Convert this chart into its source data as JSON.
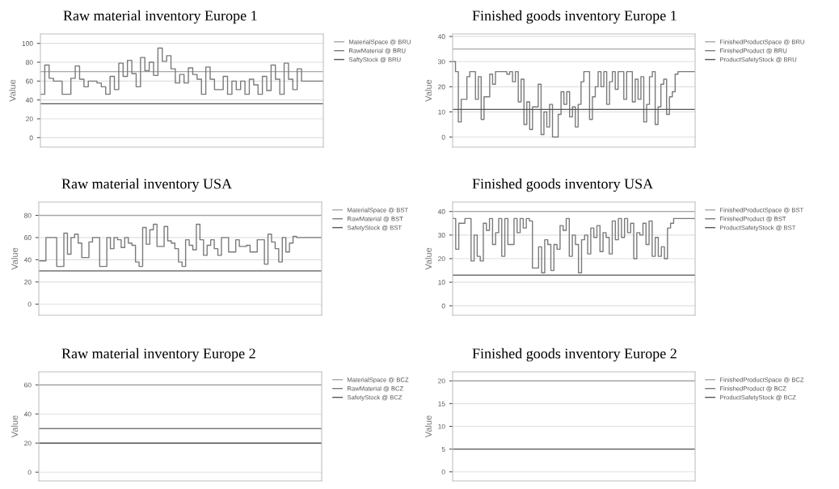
{
  "chart_data": [
    {
      "type": "step",
      "title": "Raw material inventory Europe 1",
      "ylabel": "Value",
      "ylim": [
        -10,
        110
      ],
      "yticks": [
        0,
        20,
        40,
        60,
        80,
        100
      ],
      "grid": "y",
      "legend": "right",
      "tick_labels": "y",
      "marker": "none",
      "line_style": "solid",
      "categories": [
        null,
        null,
        null,
        null,
        null,
        null,
        null,
        null,
        null,
        null,
        null,
        null,
        null,
        null,
        null,
        null,
        null,
        null,
        null,
        null,
        null,
        null,
        null,
        null,
        null,
        null,
        null,
        null,
        null,
        null,
        null,
        null,
        null,
        null,
        null,
        null,
        null,
        null,
        null,
        null,
        null,
        null,
        null,
        null,
        null,
        null,
        null,
        null,
        null,
        null,
        null,
        null,
        null,
        null,
        null,
        null,
        null,
        null,
        null,
        null,
        null,
        null,
        null,
        null,
        null,
        null
      ],
      "series": [
        {
          "name": "MaterialSpace @ BRU",
          "color": "#a8a8a8",
          "values": [
            70,
            70,
            70,
            70,
            70,
            70,
            70,
            70,
            70,
            70,
            70,
            70,
            70,
            70,
            70,
            70,
            70,
            70,
            70,
            70,
            70,
            70,
            70,
            70,
            70,
            70,
            70,
            70,
            70,
            70,
            70,
            70,
            70,
            70,
            70,
            70,
            70,
            70,
            70,
            70,
            70,
            70,
            70,
            70,
            70,
            70,
            70,
            70,
            70,
            70,
            70,
            70,
            70,
            70,
            70,
            70,
            70,
            70,
            70,
            70,
            70,
            70,
            70,
            70,
            70,
            70
          ]
        },
        {
          "name": "RawMaterial @ BRU",
          "color": "#7a7a7a",
          "values": [
            46,
            77,
            63,
            60,
            60,
            46,
            46,
            63,
            76,
            62,
            54,
            60,
            60,
            58,
            54,
            46,
            65,
            51,
            79,
            65,
            82,
            68,
            54,
            85,
            71,
            80,
            66,
            95,
            81,
            87,
            73,
            58,
            67,
            58,
            74,
            67,
            62,
            46,
            75,
            62,
            51,
            51,
            65,
            46,
            60,
            51,
            60,
            46,
            62,
            56,
            46,
            65,
            50,
            77,
            62,
            46,
            79,
            62,
            51,
            73,
            60,
            60,
            60,
            60,
            60,
            60
          ]
        },
        {
          "name": "SaftyStock @ BRU",
          "color": "#555555",
          "values": [
            36,
            36,
            36,
            36,
            36,
            36,
            36,
            36,
            36,
            36,
            36,
            36,
            36,
            36,
            36,
            36,
            36,
            36,
            36,
            36,
            36,
            36,
            36,
            36,
            36,
            36,
            36,
            36,
            36,
            36,
            36,
            36,
            36,
            36,
            36,
            36,
            36,
            36,
            36,
            36,
            36,
            36,
            36,
            36,
            36,
            36,
            36,
            36,
            36,
            36,
            36,
            36,
            36,
            36,
            36,
            36,
            36,
            36,
            36,
            36,
            36,
            36,
            36,
            36,
            36,
            36
          ]
        }
      ]
    },
    {
      "type": "step",
      "title": "Finished goods inventory Europe 1",
      "ylabel": "Value",
      "ylim": [
        -4,
        41
      ],
      "yticks": [
        0,
        10,
        20,
        30,
        40
      ],
      "grid": "y",
      "legend": "right",
      "tick_labels": "y",
      "marker": "none",
      "line_style": "solid",
      "categories": [
        null,
        null,
        null,
        null,
        null,
        null,
        null,
        null,
        null,
        null,
        null,
        null,
        null,
        null,
        null,
        null,
        null,
        null,
        null,
        null,
        null,
        null,
        null,
        null,
        null,
        null,
        null,
        null,
        null,
        null,
        null,
        null,
        null,
        null,
        null,
        null,
        null,
        null,
        null,
        null,
        null,
        null,
        null,
        null,
        null,
        null,
        null,
        null,
        null,
        null,
        null,
        null,
        null,
        null,
        null,
        null,
        null,
        null,
        null,
        null,
        null,
        null,
        null,
        null,
        null,
        null,
        null,
        null,
        null,
        null,
        null,
        null,
        null,
        null,
        null,
        null,
        null,
        null,
        null,
        null,
        null,
        null,
        null,
        null,
        null,
        null
      ],
      "series": [
        {
          "name": "FinishedProductSpace @ BRU",
          "color": "#a8a8a8",
          "values": [
            35,
            35,
            35,
            35,
            35,
            35,
            35,
            35,
            35,
            35,
            35,
            35,
            35,
            35,
            35,
            35,
            35,
            35,
            35,
            35,
            35,
            35,
            35,
            35,
            35,
            35,
            35,
            35,
            35,
            35,
            35,
            35,
            35,
            35,
            35,
            35,
            35,
            35,
            35,
            35,
            35,
            35,
            35,
            35,
            35,
            35,
            35,
            35,
            35,
            35,
            35,
            35,
            35,
            35,
            35,
            35,
            35,
            35,
            35,
            35,
            35,
            35,
            35,
            35,
            35,
            35,
            35,
            35,
            35,
            35,
            35,
            35,
            35,
            35,
            35,
            35,
            35,
            35,
            35,
            35,
            35,
            35,
            35,
            35,
            35,
            35
          ]
        },
        {
          "name": "FinishedProduct @ BRU",
          "color": "#7a7a7a",
          "values": [
            30,
            26,
            6,
            15,
            15,
            24,
            26,
            26,
            15,
            24,
            7,
            16,
            16,
            25,
            21,
            26,
            26,
            26,
            26,
            25,
            26,
            22,
            26,
            14,
            23,
            5,
            14,
            3,
            12,
            12,
            21,
            1,
            10,
            4,
            13,
            0,
            0,
            9,
            18,
            13,
            18,
            8,
            12,
            4,
            13,
            22,
            26,
            26,
            7,
            16,
            20,
            26,
            20,
            26,
            13,
            22,
            26,
            19,
            26,
            26,
            15,
            26,
            26,
            14,
            23,
            15,
            24,
            6,
            13,
            24,
            26,
            5,
            12,
            21,
            23,
            9,
            16,
            18,
            25,
            26,
            26,
            26,
            26,
            26,
            26,
            26
          ]
        },
        {
          "name": "ProductSafetyStock @ BRU",
          "color": "#555555",
          "values": [
            11,
            11,
            11,
            11,
            11,
            11,
            11,
            11,
            11,
            11,
            11,
            11,
            11,
            11,
            11,
            11,
            11,
            11,
            11,
            11,
            11,
            11,
            11,
            11,
            11,
            11,
            11,
            11,
            11,
            11,
            11,
            11,
            11,
            11,
            11,
            11,
            11,
            11,
            11,
            11,
            11,
            11,
            11,
            11,
            11,
            11,
            11,
            11,
            11,
            11,
            11,
            11,
            11,
            11,
            11,
            11,
            11,
            11,
            11,
            11,
            11,
            11,
            11,
            11,
            11,
            11,
            11,
            11,
            11,
            11,
            11,
            11,
            11,
            11,
            11,
            11,
            11,
            11,
            11,
            11,
            11,
            11,
            11,
            11,
            11,
            11
          ]
        }
      ]
    },
    {
      "type": "step",
      "title": "Raw material inventory USA",
      "ylabel": "Value",
      "ylim": [
        -10,
        92
      ],
      "yticks": [
        0,
        20,
        40,
        60,
        80
      ],
      "grid": "y",
      "legend": "right",
      "tick_labels": "y",
      "marker": "none",
      "line_style": "solid",
      "categories": [
        null,
        null,
        null,
        null,
        null,
        null,
        null,
        null,
        null,
        null,
        null,
        null,
        null,
        null,
        null,
        null,
        null,
        null,
        null,
        null,
        null,
        null,
        null,
        null,
        null,
        null,
        null,
        null,
        null,
        null,
        null,
        null,
        null,
        null,
        null,
        null,
        null,
        null,
        null,
        null,
        null,
        null,
        null,
        null,
        null,
        null,
        null,
        null,
        null,
        null,
        null,
        null,
        null,
        null,
        null,
        null,
        null,
        null,
        null,
        null,
        null,
        null,
        null,
        null,
        null,
        null,
        null,
        null,
        null,
        null,
        null,
        null,
        null,
        null,
        null,
        null,
        null,
        null,
        null,
        null
      ],
      "series": [
        {
          "name": "MaterialSpace @ BST",
          "color": "#a8a8a8",
          "values": [
            80,
            80,
            80,
            80,
            80,
            80,
            80,
            80,
            80,
            80,
            80,
            80,
            80,
            80,
            80,
            80,
            80,
            80,
            80,
            80,
            80,
            80,
            80,
            80,
            80,
            80,
            80,
            80,
            80,
            80,
            80,
            80,
            80,
            80,
            80,
            80,
            80,
            80,
            80,
            80,
            80,
            80,
            80,
            80,
            80,
            80,
            80,
            80,
            80,
            80,
            80,
            80,
            80,
            80,
            80,
            80,
            80,
            80,
            80,
            80,
            80,
            80,
            80,
            80,
            80,
            80,
            80,
            80,
            80,
            80,
            80,
            80,
            80,
            80,
            80,
            80,
            80,
            80,
            80,
            80
          ]
        },
        {
          "name": "RawMaterial @ BST",
          "color": "#7a7a7a",
          "values": [
            39,
            39,
            60,
            60,
            60,
            34,
            34,
            64,
            45,
            60,
            63,
            55,
            42,
            42,
            56,
            60,
            60,
            34,
            34,
            60,
            50,
            60,
            58,
            51,
            60,
            55,
            53,
            38,
            34,
            69,
            54,
            67,
            72,
            52,
            52,
            70,
            57,
            55,
            50,
            38,
            34,
            58,
            53,
            49,
            72,
            58,
            44,
            53,
            58,
            50,
            44,
            60,
            60,
            47,
            47,
            58,
            52,
            52,
            53,
            47,
            47,
            58,
            58,
            36,
            63,
            56,
            50,
            38,
            60,
            47,
            55,
            61,
            60,
            60,
            60,
            60,
            60,
            60,
            60,
            60
          ]
        },
        {
          "name": "SafetyStock @ BST",
          "color": "#555555",
          "values": [
            30,
            30,
            30,
            30,
            30,
            30,
            30,
            30,
            30,
            30,
            30,
            30,
            30,
            30,
            30,
            30,
            30,
            30,
            30,
            30,
            30,
            30,
            30,
            30,
            30,
            30,
            30,
            30,
            30,
            30,
            30,
            30,
            30,
            30,
            30,
            30,
            30,
            30,
            30,
            30,
            30,
            30,
            30,
            30,
            30,
            30,
            30,
            30,
            30,
            30,
            30,
            30,
            30,
            30,
            30,
            30,
            30,
            30,
            30,
            30,
            30,
            30,
            30,
            30,
            30,
            30,
            30,
            30,
            30,
            30,
            30,
            30,
            30,
            30,
            30,
            30,
            30,
            30,
            30,
            30
          ]
        }
      ]
    },
    {
      "type": "step",
      "title": "Finished goods inventory USA",
      "ylabel": "Value",
      "ylim": [
        -4,
        44
      ],
      "yticks": [
        0,
        10,
        20,
        30,
        40
      ],
      "grid": "y",
      "legend": "right",
      "tick_labels": "y",
      "marker": "none",
      "line_style": "solid",
      "categories": [
        null,
        null,
        null,
        null,
        null,
        null,
        null,
        null,
        null,
        null,
        null,
        null,
        null,
        null,
        null,
        null,
        null,
        null,
        null,
        null,
        null,
        null,
        null,
        null,
        null,
        null,
        null,
        null,
        null,
        null,
        null,
        null,
        null,
        null,
        null,
        null,
        null,
        null,
        null,
        null,
        null,
        null,
        null,
        null,
        null,
        null,
        null,
        null,
        null,
        null,
        null,
        null,
        null,
        null,
        null,
        null,
        null,
        null,
        null,
        null,
        null,
        null,
        null,
        null,
        null,
        null,
        null,
        null,
        null,
        null,
        null,
        null,
        null,
        null,
        null,
        null,
        null,
        null,
        null,
        null
      ],
      "series": [
        {
          "name": "FinishedProductSpace @ BST",
          "color": "#a8a8a8",
          "values": [
            40,
            40,
            40,
            40,
            40,
            40,
            40,
            40,
            40,
            40,
            40,
            40,
            40,
            40,
            40,
            40,
            40,
            40,
            40,
            40,
            40,
            40,
            40,
            40,
            40,
            40,
            40,
            40,
            40,
            40,
            40,
            40,
            40,
            40,
            40,
            40,
            40,
            40,
            40,
            40,
            40,
            40,
            40,
            40,
            40,
            40,
            40,
            40,
            40,
            40,
            40,
            40,
            40,
            40,
            40,
            40,
            40,
            40,
            40,
            40,
            40,
            40,
            40,
            40,
            40,
            40,
            40,
            40,
            40,
            40,
            40,
            40,
            40,
            40,
            40,
            40,
            40,
            40,
            40,
            40
          ]
        },
        {
          "name": "FinishedProduct @ BST",
          "color": "#7a7a7a",
          "values": [
            37,
            24,
            35,
            35,
            37,
            37,
            19,
            30,
            21,
            19,
            35,
            32,
            37,
            26,
            31,
            37,
            21,
            37,
            26,
            26,
            37,
            31,
            37,
            33,
            37,
            36,
            16,
            16,
            25,
            14,
            28,
            26,
            15,
            26,
            24,
            34,
            32,
            37,
            21,
            30,
            26,
            14,
            28,
            30,
            22,
            33,
            29,
            34,
            23,
            31,
            29,
            22,
            36,
            28,
            37,
            29,
            37,
            31,
            35,
            20,
            31,
            30,
            35,
            26,
            36,
            21,
            29,
            21,
            25,
            20,
            33,
            35,
            37,
            37,
            37,
            37,
            37,
            37,
            37,
            37
          ]
        },
        {
          "name": "ProductSafetyStock @ BST",
          "color": "#555555",
          "values": [
            13,
            13,
            13,
            13,
            13,
            13,
            13,
            13,
            13,
            13,
            13,
            13,
            13,
            13,
            13,
            13,
            13,
            13,
            13,
            13,
            13,
            13,
            13,
            13,
            13,
            13,
            13,
            13,
            13,
            13,
            13,
            13,
            13,
            13,
            13,
            13,
            13,
            13,
            13,
            13,
            13,
            13,
            13,
            13,
            13,
            13,
            13,
            13,
            13,
            13,
            13,
            13,
            13,
            13,
            13,
            13,
            13,
            13,
            13,
            13,
            13,
            13,
            13,
            13,
            13,
            13,
            13,
            13,
            13,
            13,
            13,
            13,
            13,
            13,
            13,
            13,
            13,
            13,
            13,
            13
          ]
        }
      ]
    },
    {
      "type": "step",
      "title": "Raw material inventory Europe 2",
      "ylabel": "Value",
      "ylim": [
        -6,
        69
      ],
      "yticks": [
        0,
        20,
        40,
        60
      ],
      "grid": "y",
      "legend": "right",
      "tick_labels": "y",
      "marker": "none",
      "line_style": "solid",
      "categories": [
        null,
        null,
        null,
        null,
        null,
        null,
        null,
        null,
        null,
        null
      ],
      "series": [
        {
          "name": "MaterialSpace @ BCZ",
          "color": "#a8a8a8",
          "values": [
            60,
            60,
            60,
            60,
            60,
            60,
            60,
            60,
            60,
            60
          ]
        },
        {
          "name": "RawMaterial @ BCZ",
          "color": "#7a7a7a",
          "values": [
            30,
            30,
            30,
            30,
            30,
            30,
            30,
            30,
            30,
            30
          ]
        },
        {
          "name": "SafetyStock @ BCZ",
          "color": "#555555",
          "values": [
            20,
            20,
            20,
            20,
            20,
            20,
            20,
            20,
            20,
            20
          ]
        }
      ]
    },
    {
      "type": "step",
      "title": "Finished goods inventory Europe 2",
      "ylabel": "Value",
      "ylim": [
        -2,
        22
      ],
      "yticks": [
        0,
        5,
        10,
        15,
        20
      ],
      "grid": "y",
      "legend": "right",
      "tick_labels": "y",
      "marker": "none",
      "line_style": "solid",
      "categories": [
        null,
        null,
        null,
        null,
        null,
        null,
        null,
        null,
        null,
        null
      ],
      "series": [
        {
          "name": "FinishedProductSpace @ BCZ",
          "color": "#a8a8a8",
          "values": [
            20,
            20,
            20,
            20,
            20,
            20,
            20,
            20,
            20,
            20
          ]
        },
        {
          "name": "FinishedProduct @ BCZ",
          "color": "#7a7a7a",
          "values": [
            null,
            null,
            null,
            null,
            null,
            null,
            null,
            null,
            null,
            null
          ]
        },
        {
          "name": "ProductSafetyStock @ BCZ",
          "color": "#555555",
          "values": [
            5,
            5,
            5,
            5,
            5,
            5,
            5,
            5,
            5,
            5
          ]
        }
      ]
    }
  ]
}
